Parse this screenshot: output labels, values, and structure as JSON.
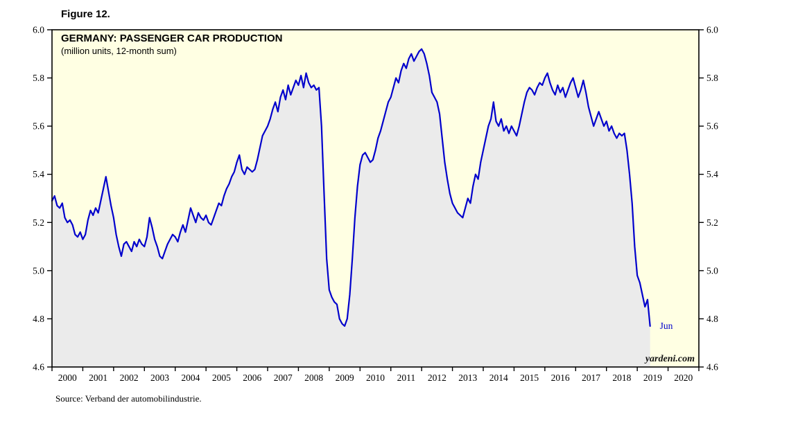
{
  "figure_label": "Figure 12.",
  "source_note": "Source: Verband der automobilindustrie.",
  "watermark": "yardeni.com",
  "chart_data": {
    "type": "line",
    "title": "GERMANY: PASSENGER CAR PRODUCTION",
    "subtitle": "(million units, 12-month sum)",
    "xlabel": "",
    "ylabel": "",
    "ylim": [
      4.6,
      6.0
    ],
    "y_tick_step": 0.2,
    "y_tick_labels": [
      "4.6",
      "4.8",
      "5.0",
      "5.2",
      "5.4",
      "5.6",
      "5.8",
      "6.0"
    ],
    "y_axis_sides": "both",
    "xlim": [
      2000,
      2021
    ],
    "x_tick_labels": [
      "2000",
      "2001",
      "2002",
      "2003",
      "2004",
      "2005",
      "2006",
      "2007",
      "2008",
      "2009",
      "2010",
      "2011",
      "2012",
      "2013",
      "2014",
      "2015",
      "2016",
      "2017",
      "2018",
      "2019",
      "2020"
    ],
    "grid": false,
    "legend": "none",
    "last_point_label": "Jun",
    "colors": {
      "line": "#0000CC",
      "area_fill": "#EBEBEB",
      "plot_background": "#FFFFE3",
      "frame": "#000000",
      "last_point_label": "#0000CC"
    },
    "series": [
      {
        "name": "Germany passenger car production, 12-month sum (million units)",
        "start": "2000-01",
        "end": "2019-06",
        "frequency": "monthly",
        "values": [
          5.29,
          5.31,
          5.27,
          5.26,
          5.28,
          5.22,
          5.2,
          5.21,
          5.19,
          5.15,
          5.14,
          5.16,
          5.13,
          5.15,
          5.21,
          5.25,
          5.23,
          5.26,
          5.24,
          5.29,
          5.34,
          5.39,
          5.33,
          5.27,
          5.22,
          5.15,
          5.1,
          5.06,
          5.11,
          5.12,
          5.1,
          5.08,
          5.12,
          5.1,
          5.13,
          5.11,
          5.1,
          5.14,
          5.22,
          5.18,
          5.13,
          5.1,
          5.06,
          5.05,
          5.08,
          5.11,
          5.13,
          5.15,
          5.14,
          5.12,
          5.16,
          5.19,
          5.16,
          5.21,
          5.26,
          5.23,
          5.2,
          5.24,
          5.22,
          5.21,
          5.23,
          5.2,
          5.19,
          5.22,
          5.25,
          5.28,
          5.27,
          5.31,
          5.34,
          5.36,
          5.39,
          5.41,
          5.45,
          5.48,
          5.42,
          5.4,
          5.43,
          5.42,
          5.41,
          5.42,
          5.46,
          5.51,
          5.56,
          5.58,
          5.6,
          5.63,
          5.67,
          5.7,
          5.66,
          5.72,
          5.75,
          5.71,
          5.77,
          5.73,
          5.76,
          5.79,
          5.77,
          5.81,
          5.76,
          5.82,
          5.78,
          5.76,
          5.77,
          5.75,
          5.76,
          5.6,
          5.32,
          5.05,
          4.92,
          4.89,
          4.87,
          4.86,
          4.8,
          4.78,
          4.77,
          4.8,
          4.9,
          5.05,
          5.22,
          5.35,
          5.44,
          5.48,
          5.49,
          5.47,
          5.45,
          5.46,
          5.5,
          5.55,
          5.58,
          5.62,
          5.66,
          5.7,
          5.72,
          5.76,
          5.8,
          5.78,
          5.83,
          5.86,
          5.84,
          5.88,
          5.9,
          5.87,
          5.89,
          5.91,
          5.92,
          5.9,
          5.86,
          5.81,
          5.74,
          5.72,
          5.7,
          5.65,
          5.55,
          5.45,
          5.38,
          5.32,
          5.28,
          5.26,
          5.24,
          5.23,
          5.22,
          5.26,
          5.3,
          5.28,
          5.35,
          5.4,
          5.38,
          5.45,
          5.5,
          5.55,
          5.6,
          5.63,
          5.7,
          5.62,
          5.6,
          5.63,
          5.58,
          5.6,
          5.57,
          5.6,
          5.58,
          5.56,
          5.6,
          5.65,
          5.7,
          5.74,
          5.76,
          5.75,
          5.73,
          5.76,
          5.78,
          5.77,
          5.8,
          5.82,
          5.78,
          5.75,
          5.73,
          5.77,
          5.74,
          5.76,
          5.72,
          5.75,
          5.78,
          5.8,
          5.76,
          5.72,
          5.75,
          5.79,
          5.74,
          5.68,
          5.64,
          5.6,
          5.63,
          5.66,
          5.63,
          5.6,
          5.62,
          5.58,
          5.6,
          5.57,
          5.55,
          5.57,
          5.56,
          5.57,
          5.5,
          5.4,
          5.28,
          5.1,
          4.98,
          4.95,
          4.9,
          4.85,
          4.88,
          4.77
        ]
      }
    ]
  }
}
